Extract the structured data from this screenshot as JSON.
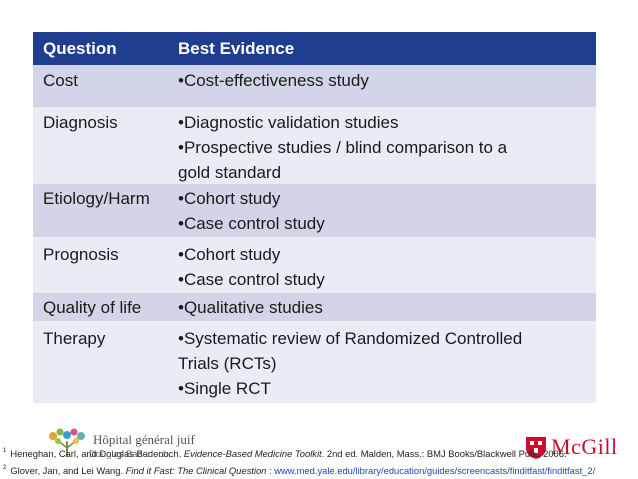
{
  "table": {
    "headers": {
      "question": "Question",
      "evidence": "Best Evidence"
    },
    "rows": [
      {
        "question": "Cost",
        "evidence": [
          "•Cost-effectiveness study"
        ]
      },
      {
        "question": "Diagnosis",
        "evidence": [
          "•Diagnostic validation studies",
          "•Prospective studies / blind comparison to a",
          "gold standard"
        ]
      },
      {
        "question": "Etiology/Harm",
        "evidence": [
          "•Cohort study",
          "•Case control study"
        ]
      },
      {
        "question": "Prognosis",
        "evidence": [
          "•Cohort study",
          "•Case control study"
        ]
      },
      {
        "question": "Quality of life",
        "evidence": [
          "•Qualitative studies"
        ]
      },
      {
        "question": "Therapy",
        "evidence": [
          "•Systematic review of Randomized Controlled",
          "Trials (RCTs)",
          "•Single RCT"
        ]
      }
    ]
  },
  "footer": {
    "logo_left_text": "Hôpital général juif",
    "logo_right_text": "McGill",
    "overlap_text": "Douglas Badenoch.",
    "ref1": {
      "num": "1",
      "before": "Heneghan, Carl, and Douglas Badenoch. ",
      "title": "Evidence-Based Medicine Toolkit",
      "after": ". 2nd ed. Malden, Mass.: BMJ Books/Blackwell Pub., 2006."
    },
    "ref2": {
      "num": "2",
      "before": "Glover, Jan, and Lei Wang. ",
      "title": "Find it Fast: The Clinical Question",
      "sep": " : ",
      "url": "www.med.yale.edu/library/education/guides/screencasts/finditfast/finditfast_2/"
    }
  },
  "colors": {
    "header_bg": "#1f3e8f",
    "row_dark": "#d2d5e8",
    "row_light": "#e9ebf5",
    "mcgill_red": "#c8102e",
    "link": "#1f47b5"
  }
}
